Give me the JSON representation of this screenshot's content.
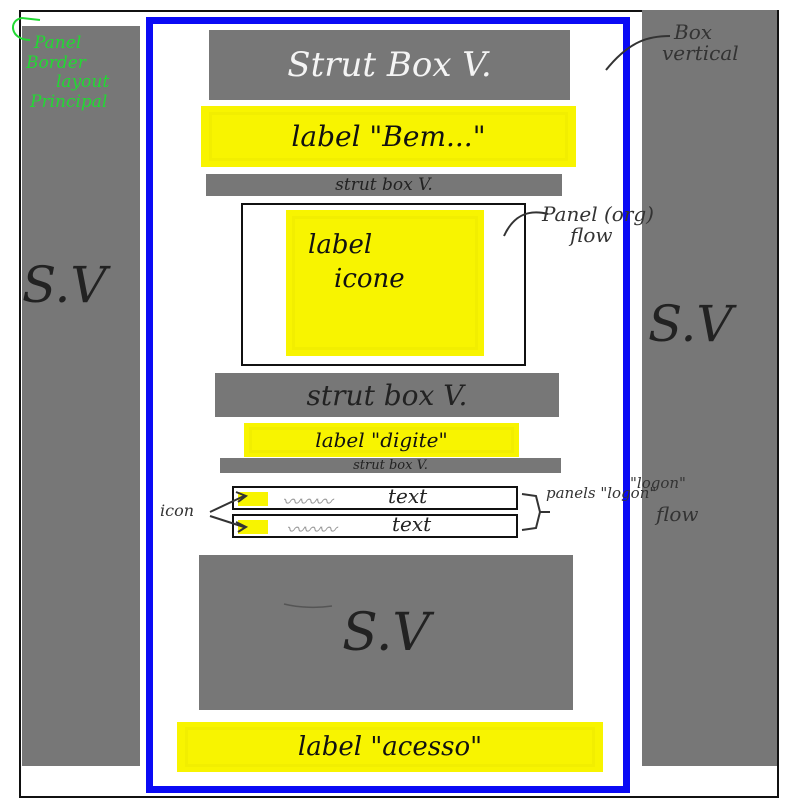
{
  "green_note": [
    "Panel",
    "Border",
    "layout",
    "Principal"
  ],
  "left_strut": {
    "label": "S.V"
  },
  "right_strut": {
    "label": "S.V"
  },
  "right_note_top": [
    "Box",
    "vertical"
  ],
  "right_note_flow": [
    "Panel (org)",
    "flow"
  ],
  "right_note_panels": [
    "panels \"logon\"",
    "\"logon\"",
    "flow"
  ],
  "left_note_icon": "icon",
  "main": {
    "strut_top": "Strut Box V.",
    "label_bem": "label \"Bem...\"",
    "strut_2": "strut box V.",
    "label_icone": [
      "label",
      "icone"
    ],
    "strut_3": "strut box V.",
    "label_digite": "label \"digite\"",
    "strut_4": "strut box V.",
    "text_rows": [
      {
        "squiggle": "〰〰〰",
        "text": "text"
      },
      {
        "squiggle": "〰〰〰",
        "text": "text"
      }
    ],
    "strut_big": "S.V",
    "label_acesso": "label \"acesso\""
  }
}
